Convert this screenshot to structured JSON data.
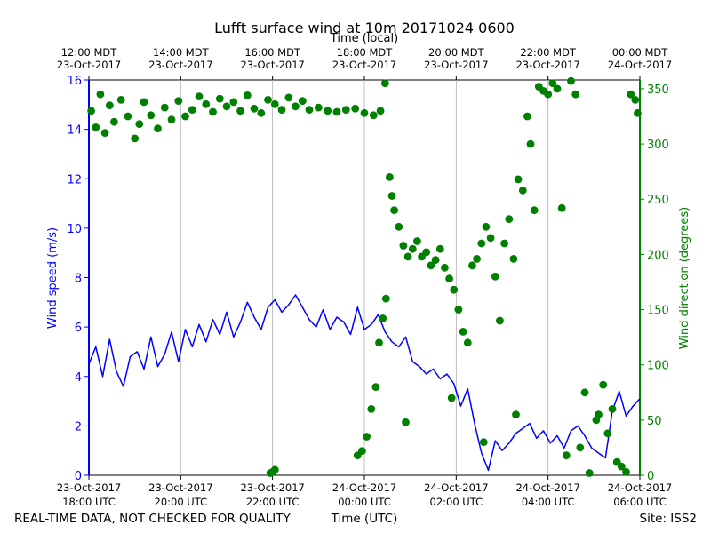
{
  "chart_data": {
    "type": "line+scatter",
    "title": "Lufft surface wind at 10m 20171024 0600",
    "top_axis": {
      "label": "Time (local)",
      "ticks": [
        [
          "12:00 MDT",
          "23-Oct-2017"
        ],
        [
          "14:00 MDT",
          "23-Oct-2017"
        ],
        [
          "16:00 MDT",
          "23-Oct-2017"
        ],
        [
          "18:00 MDT",
          "23-Oct-2017"
        ],
        [
          "20:00 MDT",
          "23-Oct-2017"
        ],
        [
          "22:00 MDT",
          "23-Oct-2017"
        ],
        [
          "00:00 MDT",
          "24-Oct-2017"
        ]
      ]
    },
    "bottom_axis": {
      "label": "Time (UTC)",
      "hours": [
        0,
        2,
        4,
        6,
        8,
        10,
        12
      ],
      "ticks": [
        [
          "23-Oct-2017",
          "18:00 UTC"
        ],
        [
          "23-Oct-2017",
          "20:00 UTC"
        ],
        [
          "23-Oct-2017",
          "22:00 UTC"
        ],
        [
          "24-Oct-2017",
          "00:00 UTC"
        ],
        [
          "24-Oct-2017",
          "02:00 UTC"
        ],
        [
          "24-Oct-2017",
          "04:00 UTC"
        ],
        [
          "24-Oct-2017",
          "06:00 UTC"
        ]
      ],
      "xlim_hours": [
        0,
        12
      ]
    },
    "left_axis": {
      "label": "Wind speed (m/s)",
      "ylim": [
        0,
        16
      ],
      "ticks": [
        0,
        2,
        4,
        6,
        8,
        10,
        12,
        14,
        16
      ],
      "color": "#0000ff"
    },
    "right_axis": {
      "label": "Wind direction (degrees)",
      "ylim": [
        0,
        358
      ],
      "ticks": [
        0,
        50,
        100,
        150,
        200,
        250,
        300,
        350
      ],
      "color": "#008000"
    },
    "series": [
      {
        "name": "Wind speed",
        "kind": "line",
        "color": "#0000ff",
        "x_hours": [
          0,
          0.15,
          0.3,
          0.45,
          0.6,
          0.75,
          0.9,
          1.05,
          1.2,
          1.35,
          1.5,
          1.65,
          1.8,
          1.95,
          2.1,
          2.25,
          2.4,
          2.55,
          2.7,
          2.85,
          3.0,
          3.15,
          3.3,
          3.45,
          3.6,
          3.75,
          3.9,
          4.05,
          4.2,
          4.35,
          4.5,
          4.65,
          4.8,
          4.95,
          5.1,
          5.25,
          5.4,
          5.55,
          5.7,
          5.85,
          6.0,
          6.15,
          6.3,
          6.45,
          6.6,
          6.75,
          6.9,
          7.05,
          7.2,
          7.35,
          7.5,
          7.65,
          7.8,
          7.95,
          8.1,
          8.25,
          8.4,
          8.55,
          8.7,
          8.85,
          9.0,
          9.15,
          9.3,
          9.45,
          9.6,
          9.75,
          9.9,
          10.05,
          10.2,
          10.35,
          10.5,
          10.65,
          10.8,
          10.95,
          11.1,
          11.25,
          11.4,
          11.55,
          11.7,
          11.85,
          12.0
        ],
        "values": [
          4.5,
          5.2,
          4.0,
          5.5,
          4.2,
          3.6,
          4.8,
          5.0,
          4.3,
          5.6,
          4.4,
          4.9,
          5.8,
          4.6,
          5.9,
          5.2,
          6.1,
          5.4,
          6.3,
          5.7,
          6.6,
          5.6,
          6.2,
          7.0,
          6.4,
          5.9,
          6.8,
          7.1,
          6.6,
          6.9,
          7.3,
          6.8,
          6.3,
          6.0,
          6.7,
          5.9,
          6.4,
          6.2,
          5.7,
          6.8,
          5.9,
          6.1,
          6.5,
          5.8,
          5.4,
          5.2,
          5.6,
          4.6,
          4.4,
          4.1,
          4.3,
          3.9,
          4.1,
          3.7,
          2.8,
          3.5,
          2.1,
          0.9,
          0.2,
          1.4,
          1.0,
          1.3,
          1.7,
          1.9,
          2.1,
          1.5,
          1.8,
          1.3,
          1.6,
          1.1,
          1.8,
          2.0,
          1.6,
          1.1,
          0.9,
          0.7,
          2.6,
          3.4,
          2.4,
          2.8,
          3.1
        ]
      },
      {
        "name": "Wind direction",
        "kind": "scatter",
        "color": "#008000",
        "points": [
          [
            0.05,
            330
          ],
          [
            0.15,
            315
          ],
          [
            0.25,
            345
          ],
          [
            0.35,
            310
          ],
          [
            0.45,
            335
          ],
          [
            0.55,
            320
          ],
          [
            0.7,
            340
          ],
          [
            0.85,
            325
          ],
          [
            1.0,
            305
          ],
          [
            1.1,
            318
          ],
          [
            1.2,
            338
          ],
          [
            1.35,
            326
          ],
          [
            1.5,
            314
          ],
          [
            1.65,
            333
          ],
          [
            1.8,
            322
          ],
          [
            1.95,
            339
          ],
          [
            2.1,
            325
          ],
          [
            2.25,
            331
          ],
          [
            2.4,
            343
          ],
          [
            2.55,
            336
          ],
          [
            2.7,
            329
          ],
          [
            2.85,
            341
          ],
          [
            3.0,
            334
          ],
          [
            3.15,
            338
          ],
          [
            3.3,
            330
          ],
          [
            3.45,
            344
          ],
          [
            3.6,
            332
          ],
          [
            3.75,
            328
          ],
          [
            3.9,
            340
          ],
          [
            4.05,
            336
          ],
          [
            4.2,
            331
          ],
          [
            4.35,
            342
          ],
          [
            4.5,
            334
          ],
          [
            4.65,
            339
          ],
          [
            4.8,
            331
          ],
          [
            5.0,
            333
          ],
          [
            5.2,
            330
          ],
          [
            5.4,
            329
          ],
          [
            5.6,
            331
          ],
          [
            5.8,
            332
          ],
          [
            6.0,
            328
          ],
          [
            6.2,
            326
          ],
          [
            6.35,
            330
          ],
          [
            6.45,
            355
          ],
          [
            5.85,
            18
          ],
          [
            5.95,
            22
          ],
          [
            6.05,
            35
          ],
          [
            6.15,
            60
          ],
          [
            6.25,
            80
          ],
          [
            6.32,
            120
          ],
          [
            6.4,
            142
          ],
          [
            6.47,
            160
          ],
          [
            6.55,
            270
          ],
          [
            6.6,
            253
          ],
          [
            6.65,
            240
          ],
          [
            6.75,
            225
          ],
          [
            6.85,
            208
          ],
          [
            6.95,
            198
          ],
          [
            7.05,
            205
          ],
          [
            7.15,
            212
          ],
          [
            7.25,
            198
          ],
          [
            7.35,
            202
          ],
          [
            7.45,
            190
          ],
          [
            7.55,
            195
          ],
          [
            7.65,
            205
          ],
          [
            7.75,
            188
          ],
          [
            7.85,
            178
          ],
          [
            7.95,
            168
          ],
          [
            8.05,
            150
          ],
          [
            8.15,
            130
          ],
          [
            8.25,
            120
          ],
          [
            8.35,
            190
          ],
          [
            8.45,
            196
          ],
          [
            8.55,
            210
          ],
          [
            8.65,
            225
          ],
          [
            8.75,
            215
          ],
          [
            8.85,
            180
          ],
          [
            8.95,
            140
          ],
          [
            9.05,
            210
          ],
          [
            9.15,
            232
          ],
          [
            9.25,
            196
          ],
          [
            9.35,
            268
          ],
          [
            9.45,
            258
          ],
          [
            9.55,
            325
          ],
          [
            9.62,
            300
          ],
          [
            9.7,
            240
          ],
          [
            9.8,
            352
          ],
          [
            9.9,
            348
          ],
          [
            10.0,
            345
          ],
          [
            10.1,
            355
          ],
          [
            10.2,
            350
          ],
          [
            10.3,
            242
          ],
          [
            10.5,
            357
          ],
          [
            10.6,
            345
          ],
          [
            10.7,
            25
          ],
          [
            10.8,
            75
          ],
          [
            11.05,
            50
          ],
          [
            11.3,
            38
          ],
          [
            11.5,
            12
          ],
          [
            11.6,
            8
          ],
          [
            11.7,
            3
          ],
          [
            11.8,
            345
          ],
          [
            11.9,
            340
          ],
          [
            11.95,
            328
          ],
          [
            4.0,
            3
          ],
          [
            3.95,
            2
          ],
          [
            4.05,
            5
          ],
          [
            6.9,
            48
          ],
          [
            7.9,
            70
          ],
          [
            8.6,
            30
          ],
          [
            9.3,
            55
          ],
          [
            10.4,
            18
          ],
          [
            10.9,
            2
          ],
          [
            11.2,
            82
          ],
          [
            11.4,
            60
          ],
          [
            11.1,
            55
          ]
        ]
      }
    ],
    "footer": {
      "left": "REAL-TIME DATA, NOT CHECKED FOR QUALITY",
      "center": "Time (UTC)",
      "right": "Site: ISS2"
    }
  }
}
